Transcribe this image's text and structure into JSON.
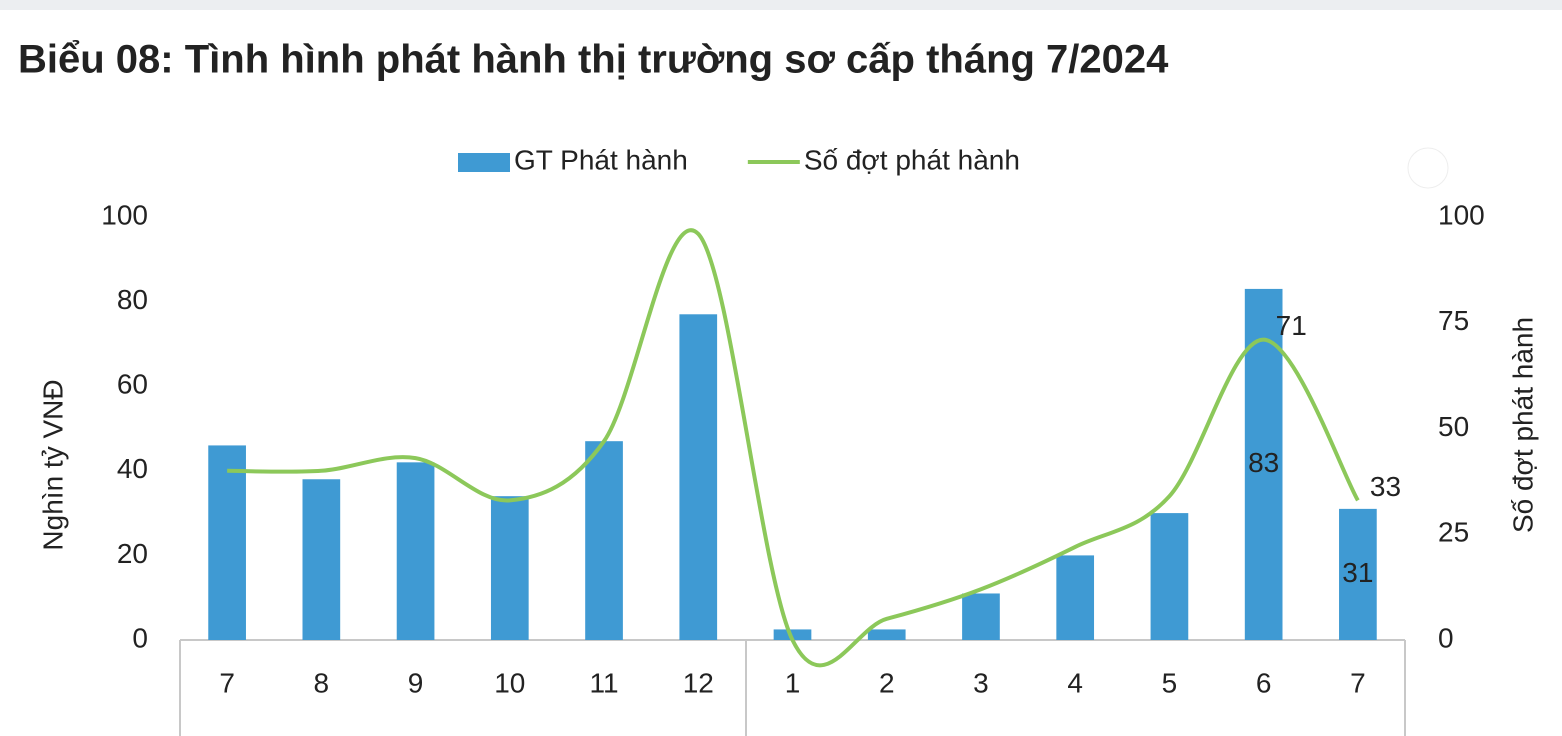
{
  "chart_data": {
    "type": "bar-line",
    "title": "Biểu 08: Tình hình phát hành thị trường sơ cấp tháng 7/2024",
    "categories": [
      "7",
      "8",
      "9",
      "10",
      "11",
      "12",
      "1",
      "2",
      "3",
      "4",
      "5",
      "6",
      "7"
    ],
    "series": [
      {
        "name": "GT Phát hành",
        "type": "bar",
        "color": "#3f9ad3",
        "values": [
          46,
          38,
          42,
          34,
          47,
          77,
          2.5,
          2.5,
          11,
          20,
          30,
          83,
          31
        ],
        "value_labels": [
          null,
          null,
          null,
          null,
          null,
          null,
          null,
          null,
          null,
          null,
          null,
          "83",
          "31"
        ]
      },
      {
        "name": "Số đợt phát hành",
        "type": "line",
        "axis": "y2",
        "color": "#8cc85a",
        "values": [
          40,
          40,
          43,
          33,
          47,
          96,
          0,
          5,
          12,
          22,
          34,
          71,
          33
        ],
        "value_labels": [
          null,
          null,
          null,
          null,
          null,
          null,
          null,
          null,
          null,
          null,
          null,
          "71",
          "33"
        ]
      }
    ],
    "ylabel": "Nghìn tỷ VNĐ",
    "y2label": "Số đợt phát hành",
    "ylim": [
      0,
      100
    ],
    "yticks": [
      0,
      20,
      40,
      60,
      80,
      100
    ],
    "y2lim": [
      0,
      100
    ],
    "y2ticks": [
      0,
      25,
      50,
      75,
      100
    ],
    "legend": "top"
  }
}
